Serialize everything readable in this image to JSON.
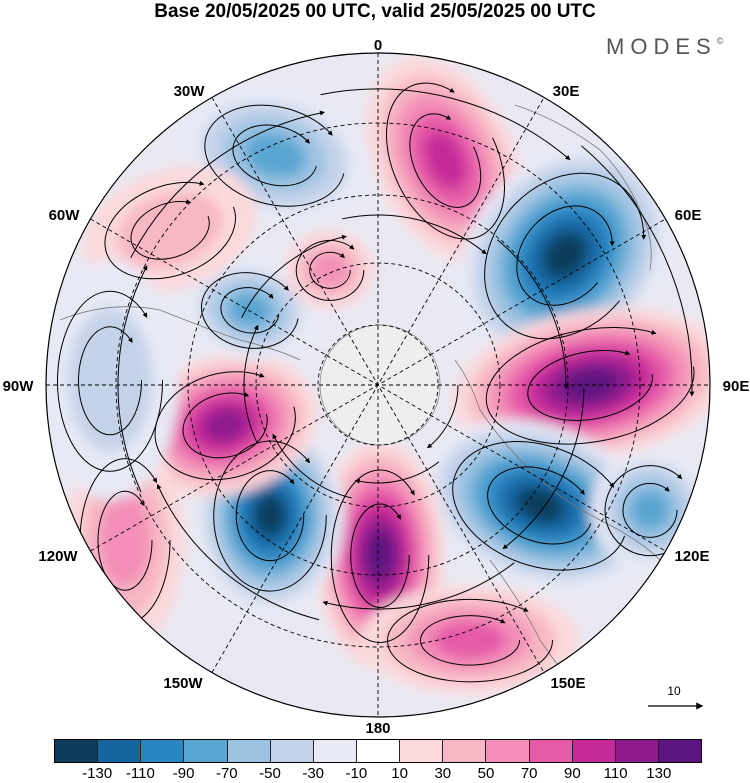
{
  "title": "Base 20/05/2025 00 UTC, valid 25/05/2025 00 UTC",
  "brand": {
    "name": "MODES",
    "mark": "©"
  },
  "map": {
    "projection": "polar stereographic (south pole centered)",
    "longitude_labels": {
      "top": "0",
      "top_right": "30E",
      "right_upper": "60E",
      "right": "90E",
      "right_lower": "120E",
      "bottom_right": "150E",
      "bottom": "180",
      "bottom_left": "150W",
      "left_lower": "120W",
      "left": "90W",
      "left_upper": "60W",
      "top_left": "30W"
    },
    "field": "anomaly (shaded) with wind streamlines",
    "reference_vector": {
      "label": "10"
    }
  },
  "colorbar": {
    "colors": [
      "#0e3d5c",
      "#1565a0",
      "#2a86c2",
      "#5aa6d2",
      "#9cc3e2",
      "#c4d3ea",
      "#e7e9f5",
      "#ffffff",
      "#fbd9dc",
      "#f8b7c4",
      "#f38fb8",
      "#e65aa8",
      "#c52a98",
      "#8e1a8e",
      "#5c1480"
    ],
    "tick_labels": [
      "-130",
      "-110",
      "-90",
      "-70",
      "-50",
      "-30",
      "-10",
      "10",
      "30",
      "50",
      "70",
      "90",
      "110",
      "130"
    ]
  }
}
